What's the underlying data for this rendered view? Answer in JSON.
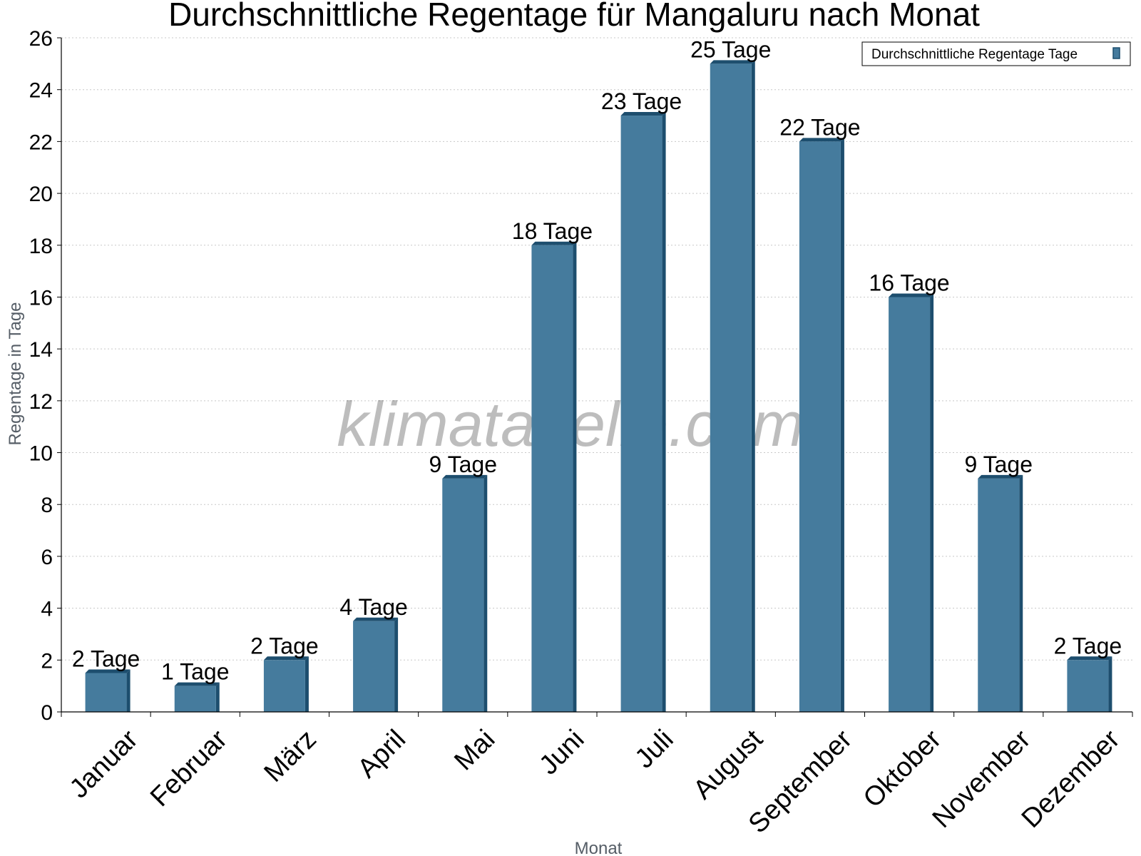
{
  "chart_data": {
    "type": "bar",
    "title": "Durchschnittliche Regentage für Mangaluru nach Monat",
    "xlabel": "Monat",
    "ylabel": "Regentage in Tage",
    "categories": [
      "Januar",
      "Februar",
      "März",
      "April",
      "Mai",
      "Juni",
      "Juli",
      "August",
      "September",
      "Oktober",
      "November",
      "Dezember"
    ],
    "series": [
      {
        "name": "Durchschnittliche Regentage Tage",
        "values": [
          1.5,
          1,
          2,
          3.5,
          9,
          18,
          23,
          25,
          22,
          16,
          9,
          2
        ],
        "labels": [
          "2 Tage",
          "1 Tage",
          "2 Tage",
          "4 Tage",
          "9 Tage",
          "18 Tage",
          "23 Tage",
          "25 Tage",
          "22 Tage",
          "16 Tage",
          "9 Tage",
          "2 Tage"
        ],
        "color": "#457b9d",
        "side_color": "#1d4e6e"
      }
    ],
    "ylim": [
      0,
      26
    ],
    "yticks": [
      0,
      2,
      4,
      6,
      8,
      10,
      12,
      14,
      16,
      18,
      20,
      22,
      24,
      26
    ],
    "grid": true,
    "legend_position": "top-right",
    "watermark": "klimatabelle.com"
  }
}
